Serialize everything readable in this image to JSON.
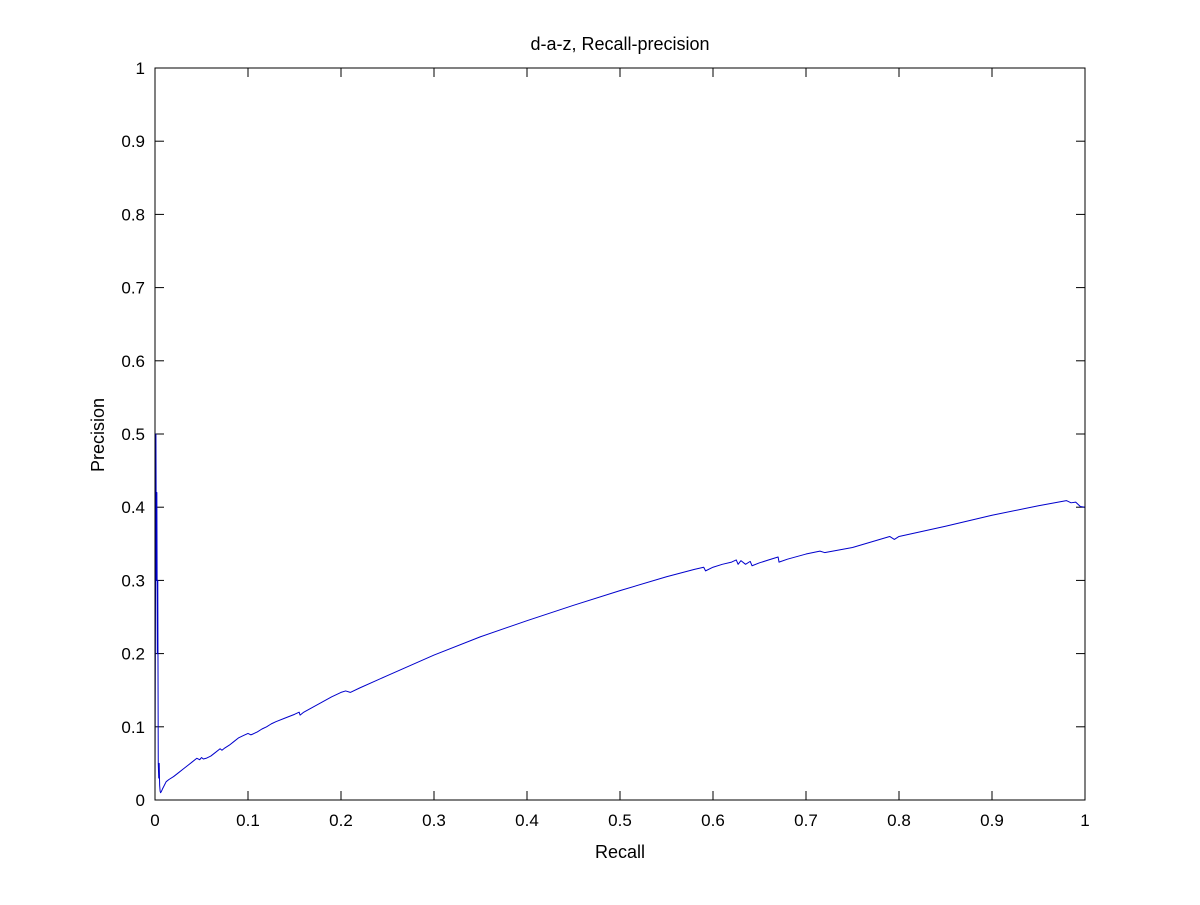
{
  "chart_data": {
    "type": "line",
    "title": "d-a-z, Recall-precision",
    "xlabel": "Recall",
    "ylabel": "Precision",
    "xlim": [
      0,
      1
    ],
    "ylim": [
      0,
      1
    ],
    "xticks": [
      "0",
      "0.1",
      "0.2",
      "0.3",
      "0.4",
      "0.5",
      "0.6",
      "0.7",
      "0.8",
      "0.9",
      "1"
    ],
    "yticks": [
      "0",
      "0.1",
      "0.2",
      "0.3",
      "0.4",
      "0.5",
      "0.6",
      "0.7",
      "0.8",
      "0.9",
      "1"
    ],
    "grid": false,
    "legend": "none",
    "colors": {
      "line": "#0000cc",
      "axes": "#000000",
      "background": "#ffffff"
    },
    "series": [
      {
        "x": [
          0,
          0.001,
          0.0015,
          0.002,
          0.0025,
          0.003,
          0.0035,
          0.004,
          0.0045,
          0.005,
          0.0055,
          0.006,
          0.007,
          0.008,
          0.01,
          0.012,
          0.015,
          0.02,
          0.025,
          0.03,
          0.035,
          0.04,
          0.045,
          0.048,
          0.05,
          0.052,
          0.055,
          0.06,
          0.065,
          0.07,
          0.072,
          0.075,
          0.08,
          0.085,
          0.09,
          0.095,
          0.1,
          0.103,
          0.105,
          0.11,
          0.115,
          0.12,
          0.125,
          0.13,
          0.14,
          0.15,
          0.155,
          0.156,
          0.16,
          0.17,
          0.18,
          0.19,
          0.2,
          0.205,
          0.21,
          0.22,
          0.25,
          0.3,
          0.35,
          0.4,
          0.45,
          0.5,
          0.55,
          0.58,
          0.59,
          0.592,
          0.6,
          0.61,
          0.62,
          0.625,
          0.627,
          0.63,
          0.635,
          0.64,
          0.642,
          0.65,
          0.66,
          0.67,
          0.671,
          0.68,
          0.7,
          0.715,
          0.72,
          0.75,
          0.79,
          0.795,
          0.8,
          0.85,
          0.9,
          0.95,
          0.98,
          0.985,
          0.99,
          0.995,
          1.0
        ],
        "y": [
          0.02,
          0.5,
          0.3,
          0.42,
          0.2,
          0.3,
          0.05,
          0.03,
          0.05,
          0.02,
          0.012,
          0.01,
          0.012,
          0.015,
          0.02,
          0.025,
          0.028,
          0.032,
          0.037,
          0.042,
          0.047,
          0.052,
          0.057,
          0.055,
          0.058,
          0.056,
          0.057,
          0.06,
          0.065,
          0.07,
          0.068,
          0.071,
          0.075,
          0.08,
          0.085,
          0.088,
          0.091,
          0.089,
          0.09,
          0.093,
          0.097,
          0.1,
          0.104,
          0.107,
          0.112,
          0.117,
          0.12,
          0.116,
          0.12,
          0.127,
          0.134,
          0.141,
          0.147,
          0.149,
          0.147,
          0.153,
          0.17,
          0.198,
          0.223,
          0.245,
          0.266,
          0.286,
          0.305,
          0.315,
          0.318,
          0.313,
          0.318,
          0.322,
          0.325,
          0.328,
          0.322,
          0.327,
          0.322,
          0.326,
          0.32,
          0.324,
          0.328,
          0.332,
          0.325,
          0.329,
          0.336,
          0.34,
          0.338,
          0.345,
          0.36,
          0.356,
          0.36,
          0.374,
          0.389,
          0.402,
          0.409,
          0.406,
          0.407,
          0.401,
          0.4
        ]
      }
    ]
  }
}
